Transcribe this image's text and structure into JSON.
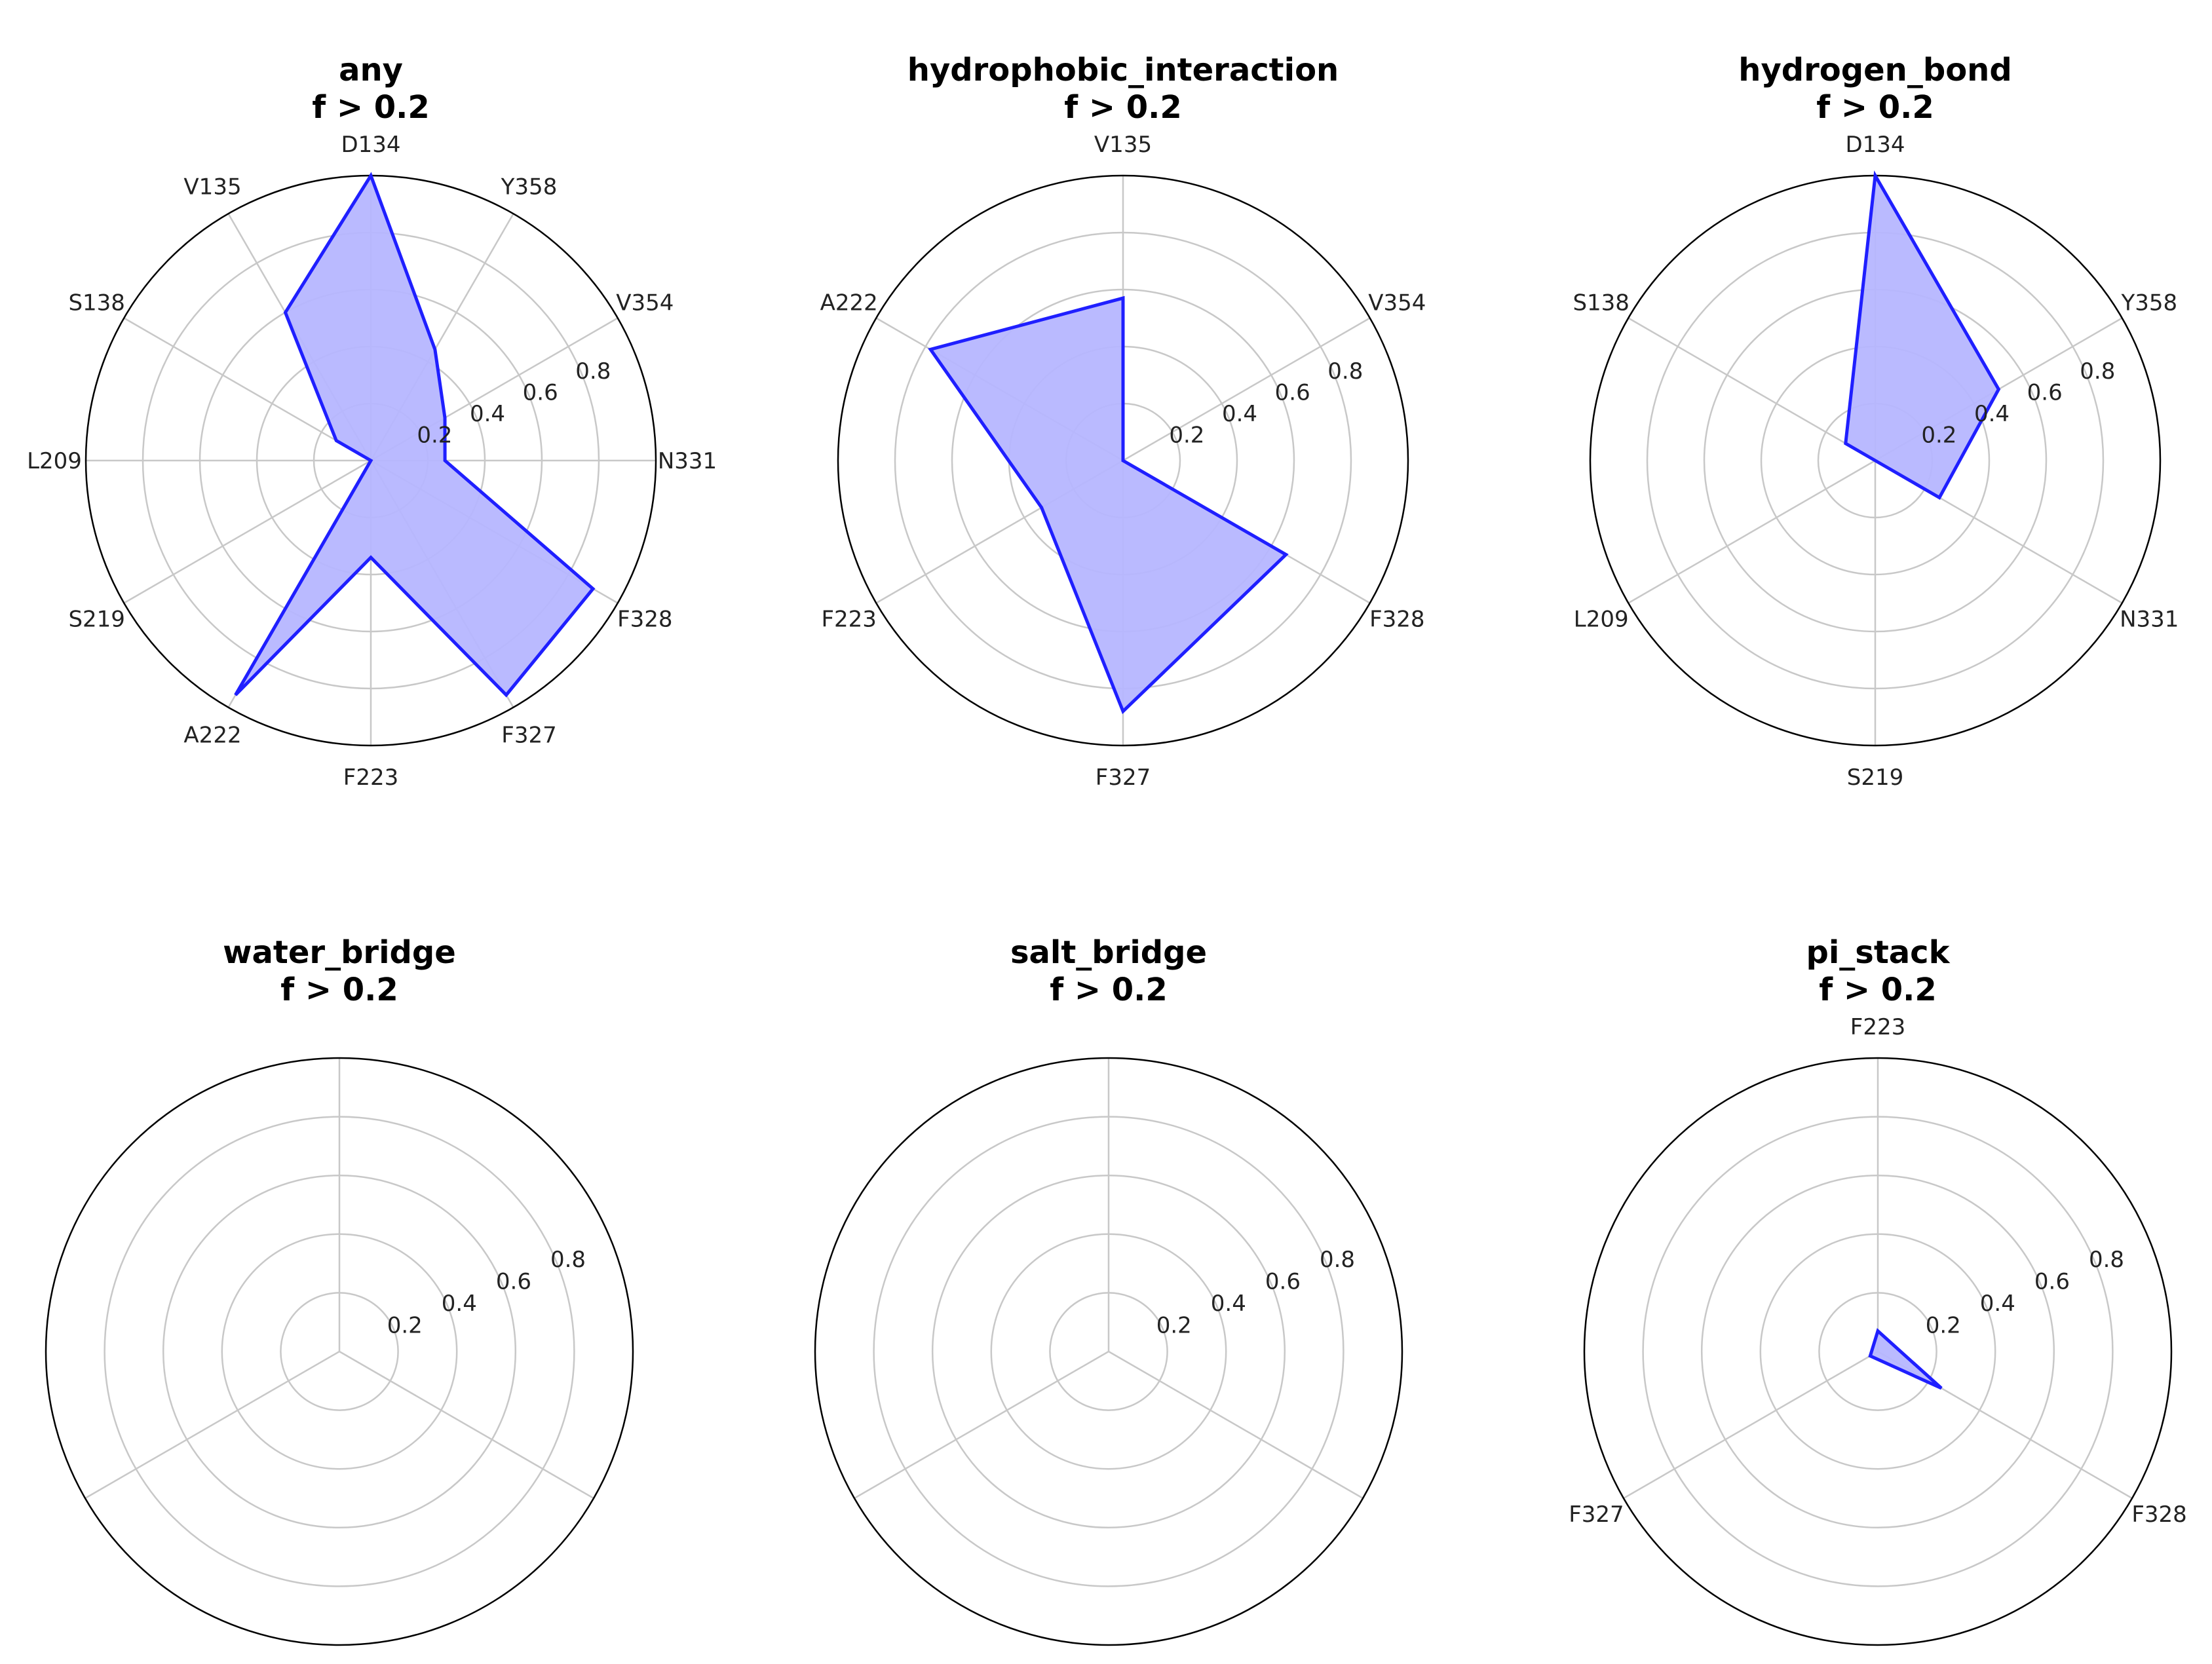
{
  "chart_data": [
    {
      "type": "radar",
      "title": "any",
      "subtitle": "f > 0.2",
      "rticks": [
        "0.2",
        "0.4",
        "0.6",
        "0.8"
      ],
      "rlim": [
        0,
        1.0
      ],
      "categories": [
        "D134",
        "Y358",
        "V354",
        "N331",
        "F328",
        "F327",
        "F223",
        "A222",
        "S219",
        "L209",
        "S138",
        "V135"
      ],
      "values": [
        1.0,
        0.45,
        0.3,
        0.26,
        0.9,
        0.95,
        0.34,
        0.95,
        0.0,
        0.0,
        0.14,
        0.6
      ]
    },
    {
      "type": "radar",
      "title": "hydrophobic_interaction",
      "subtitle": "f > 0.2",
      "rticks": [
        "0.2",
        "0.4",
        "0.6",
        "0.8"
      ],
      "rlim": [
        0,
        1.0
      ],
      "categories": [
        "V135",
        "V354",
        "F328",
        "F327",
        "F223",
        "A222"
      ],
      "values": [
        0.57,
        0.0,
        0.66,
        0.88,
        0.33,
        0.78
      ]
    },
    {
      "type": "radar",
      "title": "hydrogen_bond",
      "subtitle": "f > 0.2",
      "rticks": [
        "0.2",
        "0.4",
        "0.6",
        "0.8"
      ],
      "rlim": [
        0,
        1.0
      ],
      "categories": [
        "D134",
        "Y358",
        "N331",
        "S219",
        "L209",
        "S138"
      ],
      "values": [
        1.0,
        0.5,
        0.26,
        0.0,
        0.0,
        0.12
      ]
    },
    {
      "type": "radar",
      "title": "water_bridge",
      "subtitle": "f > 0.2",
      "rticks": [
        "0.2",
        "0.4",
        "0.6",
        "0.8"
      ],
      "rlim": [
        0,
        1.0
      ],
      "categories": [],
      "values": []
    },
    {
      "type": "radar",
      "title": "salt_bridge",
      "subtitle": "f > 0.2",
      "rticks": [
        "0.2",
        "0.4",
        "0.6",
        "0.8"
      ],
      "rlim": [
        0,
        1.0
      ],
      "categories": [],
      "values": []
    },
    {
      "type": "radar",
      "title": "pi_stack",
      "subtitle": "f > 0.2",
      "rticks": [
        "0.2",
        "0.4",
        "0.6",
        "0.8"
      ],
      "rlim": [
        0,
        1.0
      ],
      "categories": [
        "F223",
        "F328",
        "F327"
      ],
      "values": [
        0.07,
        0.25,
        0.03
      ]
    }
  ],
  "style": {
    "line_color": "#1f1fff",
    "fill_color": "#b6b6ff",
    "grid_color": "#c8c8c8",
    "frame_color": "#000000"
  }
}
